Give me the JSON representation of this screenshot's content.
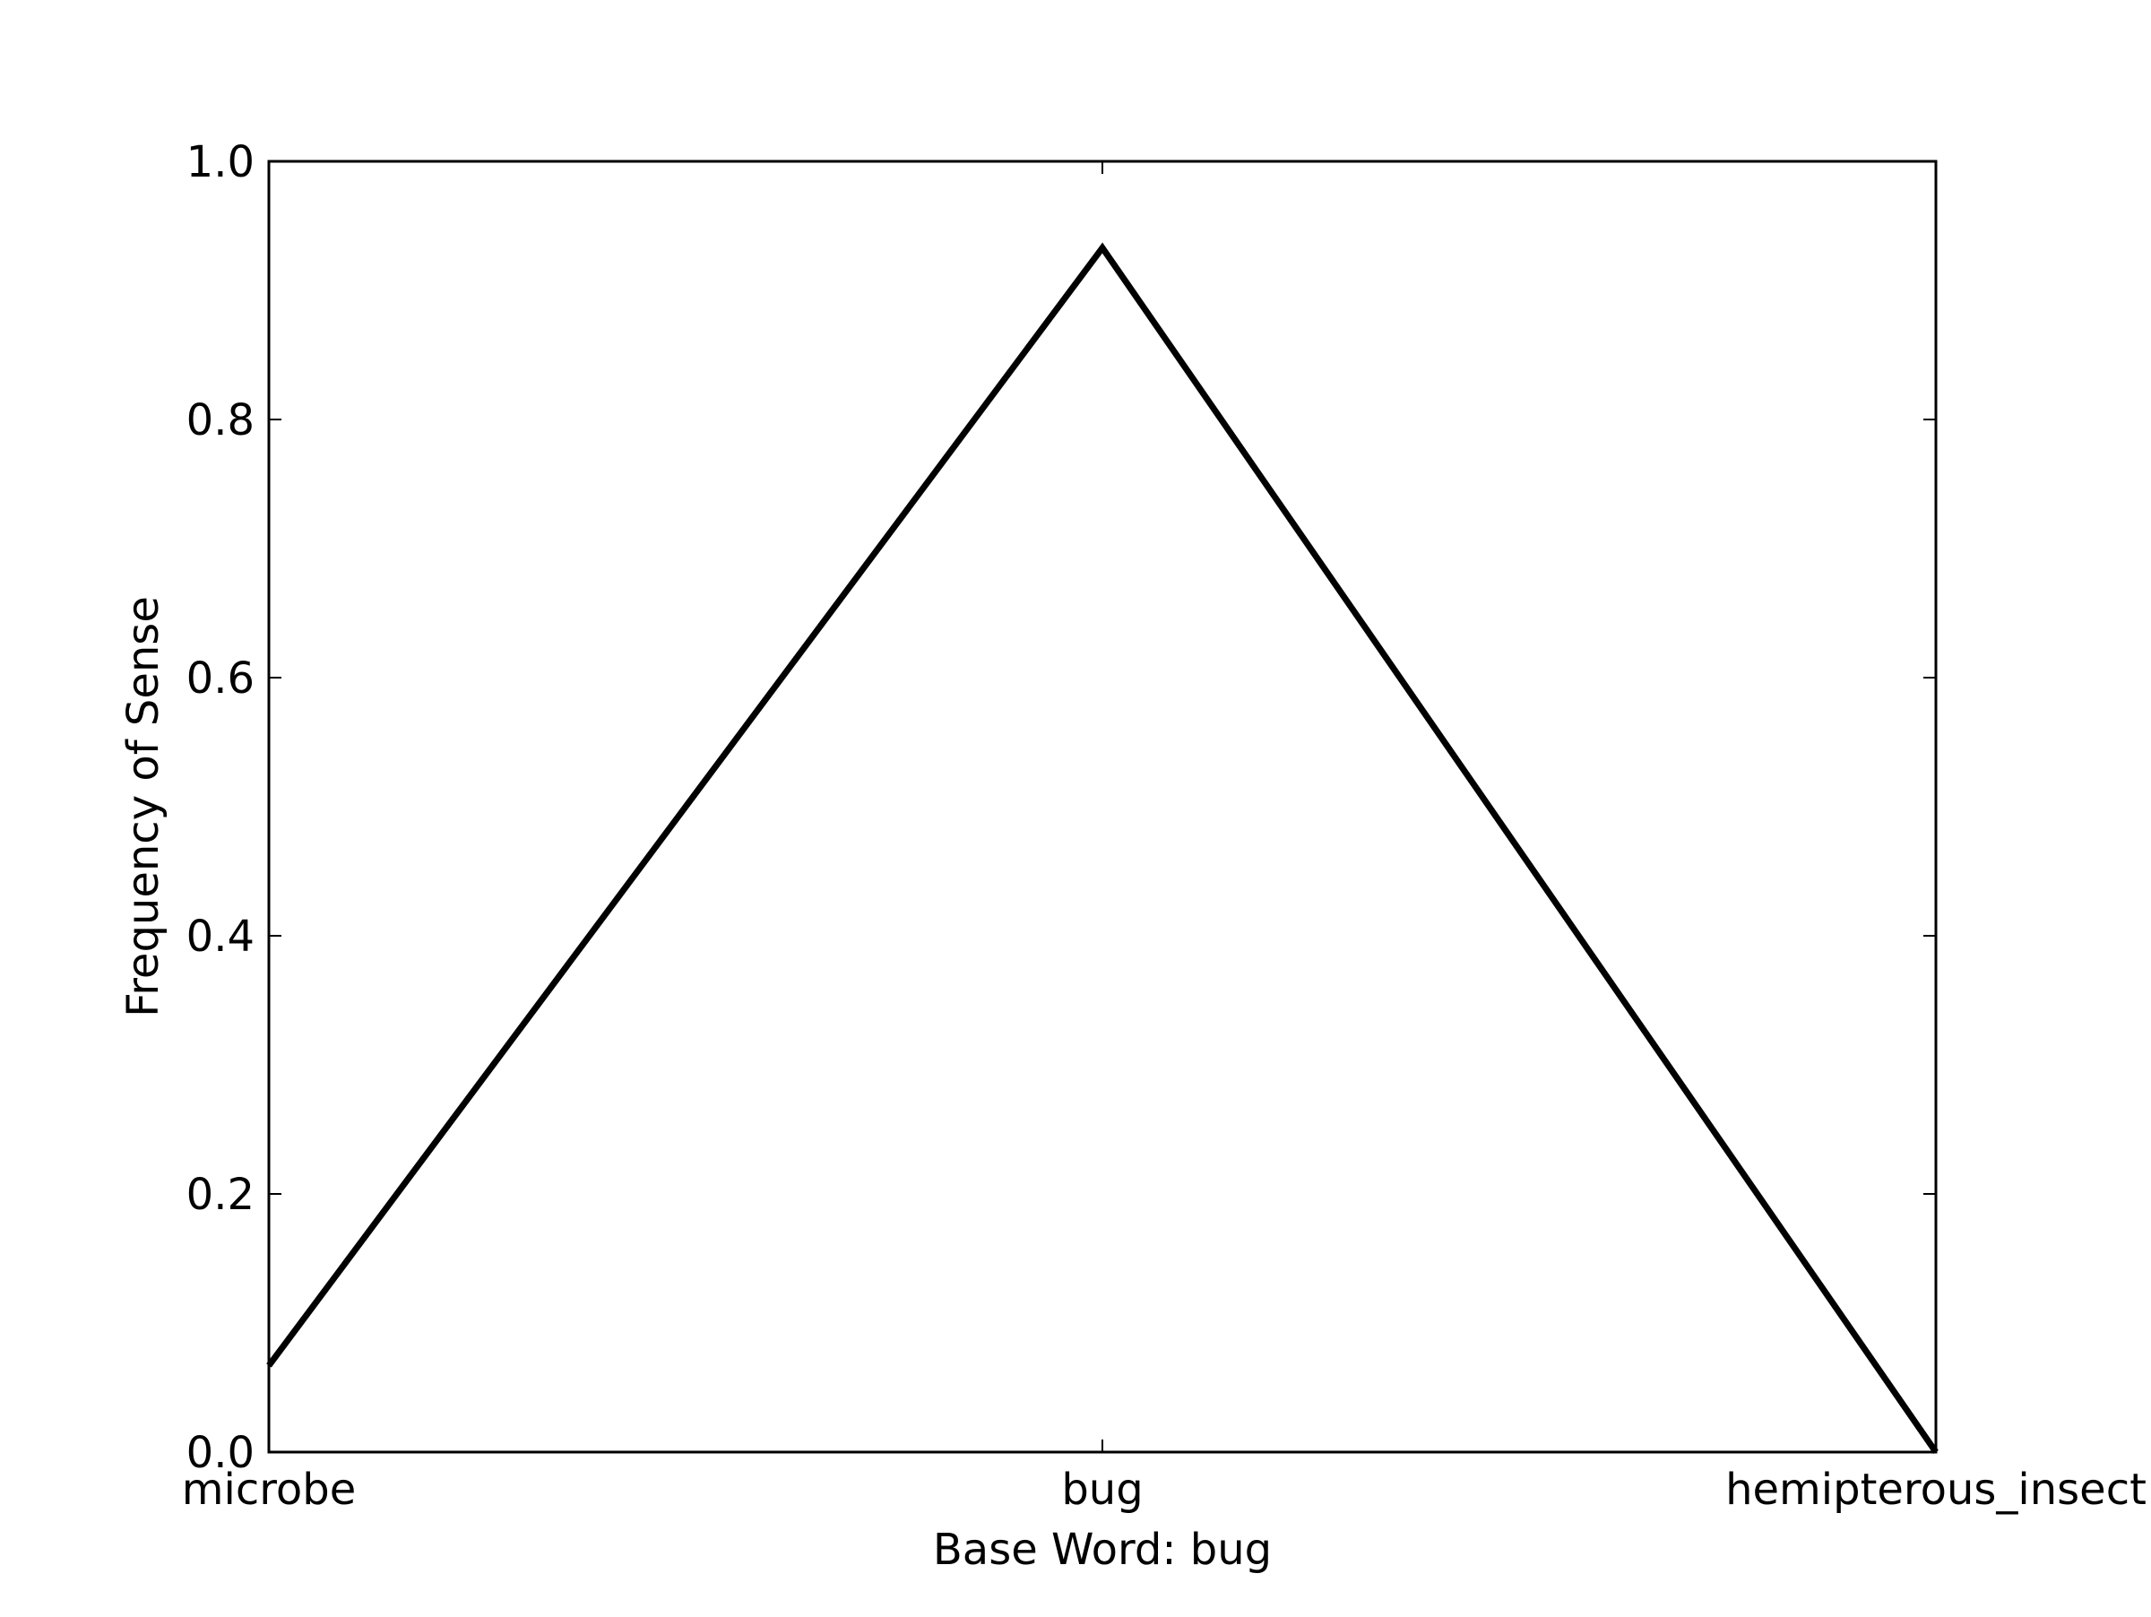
{
  "chart_data": {
    "type": "line",
    "title": "",
    "xlabel": "Base Word: bug",
    "ylabel": "Frequency of Sense",
    "categories": [
      "microbe",
      "bug",
      "hemipterous_insect"
    ],
    "series": [
      {
        "values": [
          0.067,
          0.933,
          0.0
        ]
      }
    ],
    "ylim": [
      0.0,
      1.0
    ],
    "yticks": [
      "0.0",
      "0.2",
      "0.4",
      "0.6",
      "0.8",
      "1.0"
    ],
    "grid": false,
    "legend": "none",
    "line_color": "#000000"
  }
}
